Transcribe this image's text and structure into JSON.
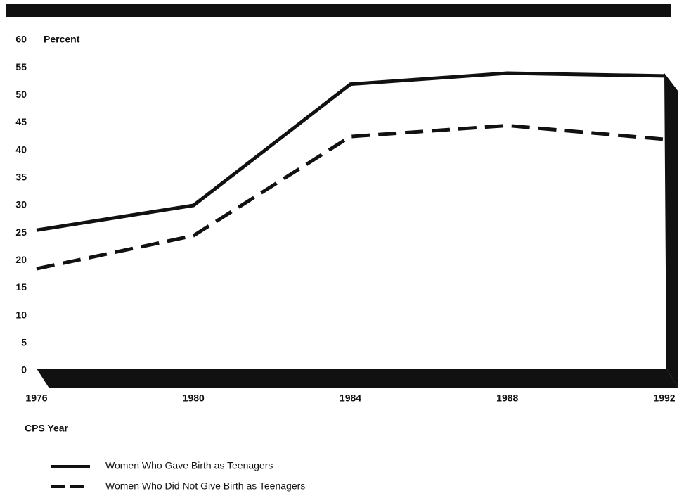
{
  "chart_data": {
    "type": "line",
    "ylabel": "Percent",
    "xlabel": "CPS Year",
    "x": [
      1976,
      1980,
      1984,
      1988,
      1992
    ],
    "xlim": [
      1976,
      1992
    ],
    "xticks": [
      1976,
      1980,
      1984,
      1988,
      1992
    ],
    "ylim": [
      0,
      60
    ],
    "yticks": [
      0,
      5,
      10,
      15,
      20,
      25,
      30,
      35,
      40,
      45,
      50,
      55,
      60
    ],
    "grid": false,
    "series": [
      {
        "name": "Women Who Gave Birth as Teenagers",
        "color": "#111111",
        "style": "solid",
        "values": [
          25.5,
          30,
          52,
          54,
          53.5
        ]
      },
      {
        "name": "Women Who Did Not Give Birth as Teenagers",
        "color": "#111111",
        "style": "dashed",
        "values": [
          18.5,
          24.5,
          42.5,
          44.5,
          42
        ]
      }
    ]
  }
}
